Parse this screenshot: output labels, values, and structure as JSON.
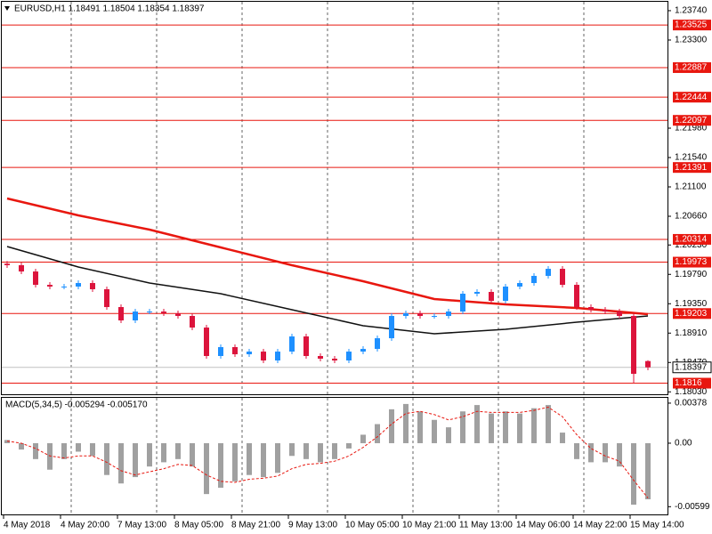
{
  "chart_data": [
    {
      "type": "candlestick",
      "title": "EURUSD,H1  1.18491 1.18504 1.18354 1.18397",
      "x_labels": [
        "4 May 2018",
        "4 May 20:00",
        "7 May 13:00",
        "8 May 05:00",
        "8 May 21:00",
        "9 May 13:00",
        "10 May 05:00",
        "10 May 21:00",
        "11 May 13:00",
        "14 May 06:00",
        "14 May 22:00",
        "15 May 14:00"
      ],
      "open": [
        1.1995,
        1.19927,
        1.19833,
        1.19633,
        1.19607,
        1.19607,
        1.1966,
        1.19567,
        1.193,
        1.191,
        1.19233,
        1.19233,
        1.19207,
        1.19167,
        1.18993,
        1.18567,
        1.187,
        1.18593,
        1.18633,
        1.185,
        1.18633,
        1.1886,
        1.18567,
        1.18527,
        1.185,
        1.18633,
        1.18673,
        1.18833,
        1.19167,
        1.19207,
        1.19167,
        1.19167,
        1.19233,
        1.195,
        1.19527,
        1.19393,
        1.19607,
        1.1966,
        1.19767,
        1.19873,
        1.19633,
        1.193,
        1.1926,
        1.19233,
        1.19167,
        1.18491
      ],
      "high": [
        1.1999,
        1.19967,
        1.19873,
        1.19673,
        1.19647,
        1.197,
        1.197,
        1.19607,
        1.1934,
        1.19273,
        1.19273,
        1.19273,
        1.19247,
        1.19207,
        1.19033,
        1.1874,
        1.1874,
        1.18673,
        1.18673,
        1.18673,
        1.189,
        1.189,
        1.18607,
        1.18567,
        1.18673,
        1.18713,
        1.18873,
        1.19207,
        1.19247,
        1.19247,
        1.19207,
        1.19273,
        1.1954,
        1.19567,
        1.19567,
        1.19647,
        1.197,
        1.19807,
        1.19913,
        1.19913,
        1.19673,
        1.1934,
        1.193,
        1.19273,
        1.19207,
        1.18504
      ],
      "low": [
        1.19887,
        1.19793,
        1.19593,
        1.19567,
        1.19567,
        1.19567,
        1.19527,
        1.1926,
        1.1906,
        1.1906,
        1.19193,
        1.19167,
        1.19127,
        1.18953,
        1.18527,
        1.18527,
        1.18553,
        1.18553,
        1.1846,
        1.1846,
        1.18593,
        1.18527,
        1.18487,
        1.1846,
        1.1846,
        1.18593,
        1.18633,
        1.18793,
        1.19127,
        1.19127,
        1.19127,
        1.19127,
        1.19193,
        1.1946,
        1.19353,
        1.19353,
        1.19567,
        1.1962,
        1.19727,
        1.19593,
        1.1926,
        1.1922,
        1.19193,
        1.19127,
        1.1816,
        1.18354
      ],
      "close": [
        1.19927,
        1.19833,
        1.19633,
        1.19607,
        1.19607,
        1.1966,
        1.19567,
        1.193,
        1.191,
        1.19233,
        1.19233,
        1.19207,
        1.19167,
        1.18993,
        1.18567,
        1.187,
        1.18593,
        1.18633,
        1.185,
        1.18633,
        1.1886,
        1.18567,
        1.18527,
        1.185,
        1.18633,
        1.18673,
        1.18833,
        1.19167,
        1.19207,
        1.19167,
        1.19167,
        1.19233,
        1.195,
        1.19527,
        1.19393,
        1.19607,
        1.1966,
        1.19767,
        1.19873,
        1.19633,
        1.193,
        1.1926,
        1.19233,
        1.19167,
        1.183,
        1.18397
      ],
      "up_color": "#1e90ff",
      "down_color": "#dc143c",
      "moving_averages": [
        {
          "color": "#e8170f",
          "x": [
            0,
            5,
            10,
            15,
            20,
            25,
            30,
            35,
            40,
            45
          ],
          "values": [
            1.20927,
            1.20673,
            1.2046,
            1.20193,
            1.19927,
            1.19687,
            1.1942,
            1.1934,
            1.19287,
            1.19193
          ]
        },
        {
          "color": "#111111",
          "x": [
            0,
            5,
            10,
            15,
            20,
            25,
            30,
            35,
            40,
            45
          ],
          "values": [
            1.20207,
            1.199,
            1.1966,
            1.195,
            1.1926,
            1.1902,
            1.189,
            1.18967,
            1.19073,
            1.19167
          ]
        }
      ],
      "levels": [
        1.23525,
        1.22887,
        1.22444,
        1.22097,
        1.21391,
        1.20314,
        1.19973,
        1.19203,
        1.1816
      ],
      "level_color": "#e8170f",
      "current_price": 1.18397,
      "ylim": [
        1.18007,
        1.23873
      ],
      "yticks": [
        {
          "value": 1.2374,
          "label": "1.23740"
        },
        {
          "value": 1.233,
          "label": "1.23300"
        },
        {
          "value": 1.2198,
          "label": "1.21980"
        },
        {
          "value": 1.2154,
          "label": "1.21540"
        },
        {
          "value": 1.211,
          "label": "1.21100"
        },
        {
          "value": 1.2066,
          "label": "1.20660"
        },
        {
          "value": 1.2023,
          "label": "1.20230"
        },
        {
          "value": 1.1979,
          "label": "1.19790"
        },
        {
          "value": 1.1935,
          "label": "1.19350"
        },
        {
          "value": 1.1891,
          "label": "1.18910"
        },
        {
          "value": 1.1847,
          "label": "1.18470"
        },
        {
          "value": 1.1803,
          "label": "1.18030"
        }
      ]
    },
    {
      "type": "macd",
      "title": "MACD(5,34,5) -0.005294 -0.005170",
      "histogram": [
        0.0003,
        -0.0006,
        -0.0015,
        -0.0025,
        -0.0015,
        -0.0008,
        -0.0012,
        -0.003,
        -0.0038,
        -0.0032,
        -0.0022,
        -0.0018,
        -0.0015,
        -0.0022,
        -0.0048,
        -0.0042,
        -0.0036,
        -0.003,
        -0.0032,
        -0.0028,
        -0.0012,
        -0.0015,
        -0.0018,
        -0.0015,
        -0.0005,
        0.0008,
        0.0018,
        0.0032,
        0.0037,
        0.003,
        0.0022,
        0.0015,
        0.003,
        0.0036,
        0.0028,
        0.003,
        0.0028,
        0.0033,
        0.0036,
        0.001,
        -0.0015,
        -0.0018,
        -0.0018,
        -0.0022,
        -0.0058,
        -0.005294
      ],
      "signal": [
        0.0002,
        0.0,
        -0.0005,
        -0.0012,
        -0.0014,
        -0.0012,
        -0.0012,
        -0.0018,
        -0.0026,
        -0.003,
        -0.0027,
        -0.0024,
        -0.002,
        -0.0021,
        -0.003,
        -0.0036,
        -0.0037,
        -0.0034,
        -0.0033,
        -0.0031,
        -0.0024,
        -0.002,
        -0.0019,
        -0.0017,
        -0.0012,
        -0.0004,
        0.0006,
        0.0018,
        0.0028,
        0.003,
        0.0027,
        0.0022,
        0.0025,
        0.003,
        0.0029,
        0.0029,
        0.0029,
        0.0031,
        0.0034,
        0.0025,
        0.0008,
        -0.0005,
        -0.0012,
        -0.0017,
        -0.0035,
        -0.00517
      ],
      "histogram_color": "#a0a0a0",
      "signal_color": "#e8170f",
      "ylim": [
        -0.00672,
        0.00428
      ],
      "yticks": [
        {
          "value": 0.00378,
          "label": "0.00378"
        },
        {
          "value": 0,
          "label": "0.00"
        },
        {
          "value": -0.00599,
          "label": "-0.00599"
        }
      ]
    }
  ]
}
